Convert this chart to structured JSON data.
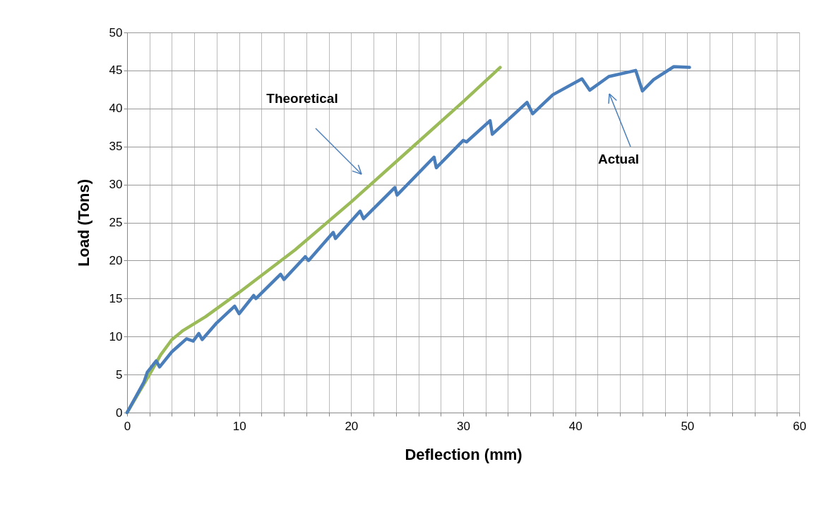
{
  "chart_data": {
    "type": "line",
    "xlabel": "Deflection (mm)",
    "ylabel": "Load (Tons)",
    "xlim": [
      0,
      60
    ],
    "ylim": [
      0,
      50
    ],
    "xticks": [
      0,
      {
        "value": 2,
        "label": null
      },
      {
        "value": 4,
        "label": null
      },
      {
        "value": 6,
        "label": null
      },
      {
        "value": 8,
        "label": null
      },
      10,
      {
        "value": 12,
        "label": null
      },
      {
        "value": 14,
        "label": null
      },
      {
        "value": 16,
        "label": null
      },
      {
        "value": 18,
        "label": null
      },
      20,
      {
        "value": 22,
        "label": null
      },
      {
        "value": 24,
        "label": null
      },
      {
        "value": 26,
        "label": null
      },
      {
        "value": 28,
        "label": null
      },
      30,
      {
        "value": 32,
        "label": null
      },
      {
        "value": 34,
        "label": null
      },
      {
        "value": 36,
        "label": null
      },
      {
        "value": 38,
        "label": null
      },
      40,
      {
        "value": 42,
        "label": null
      },
      {
        "value": 44,
        "label": null
      },
      {
        "value": 46,
        "label": null
      },
      {
        "value": 48,
        "label": null
      },
      50,
      {
        "value": 52,
        "label": null
      },
      {
        "value": 54,
        "label": null
      },
      {
        "value": 56,
        "label": null
      },
      {
        "value": 58,
        "label": null
      },
      60
    ],
    "yticks": [
      0,
      5,
      10,
      15,
      20,
      25,
      30,
      35,
      40,
      45,
      50
    ],
    "grid": true,
    "marker": "none",
    "line_style": "solid",
    "series": [
      {
        "color": "#9bbb59",
        "x": [
          0,
          2,
          3,
          4,
          5,
          7,
          10,
          15,
          20,
          25,
          30,
          33.3
        ],
        "values": [
          0,
          5,
          7.6,
          9.6,
          10.8,
          12.6,
          15.8,
          21.4,
          27.7,
          34.3,
          40.9,
          45.4
        ]
      },
      {
        "color": "#4a7ebb",
        "x": [
          0,
          1.5,
          1.8,
          2.6,
          2.9,
          4,
          5.3,
          5.9,
          6.4,
          6.7,
          8,
          9.6,
          10,
          11.3,
          11.5,
          13.7,
          14,
          15.9,
          16.2,
          18.4,
          18.6,
          20.8,
          21.1,
          23.9,
          24.1,
          27.4,
          27.6,
          30,
          30.3,
          32.4,
          32.6,
          35.7,
          36.2,
          38,
          40.6,
          41.3,
          43,
          45.4,
          46,
          47,
          48.8,
          50.2
        ],
        "values": [
          0,
          4,
          5.3,
          6.8,
          6.0,
          8,
          9.7,
          9.4,
          10.4,
          9.6,
          11.8,
          14,
          13,
          15.4,
          15.0,
          18.2,
          17.5,
          20.5,
          20,
          23.7,
          22.9,
          26.5,
          25.5,
          29.6,
          28.6,
          33.6,
          32.2,
          35.8,
          35.6,
          38.4,
          36.6,
          40.8,
          39.3,
          41.8,
          43.9,
          42.4,
          44.2,
          45,
          42.3,
          43.8,
          45.5,
          45.4
        ]
      }
    ],
    "annotations": [
      "Theoretical",
      "Actual"
    ]
  }
}
